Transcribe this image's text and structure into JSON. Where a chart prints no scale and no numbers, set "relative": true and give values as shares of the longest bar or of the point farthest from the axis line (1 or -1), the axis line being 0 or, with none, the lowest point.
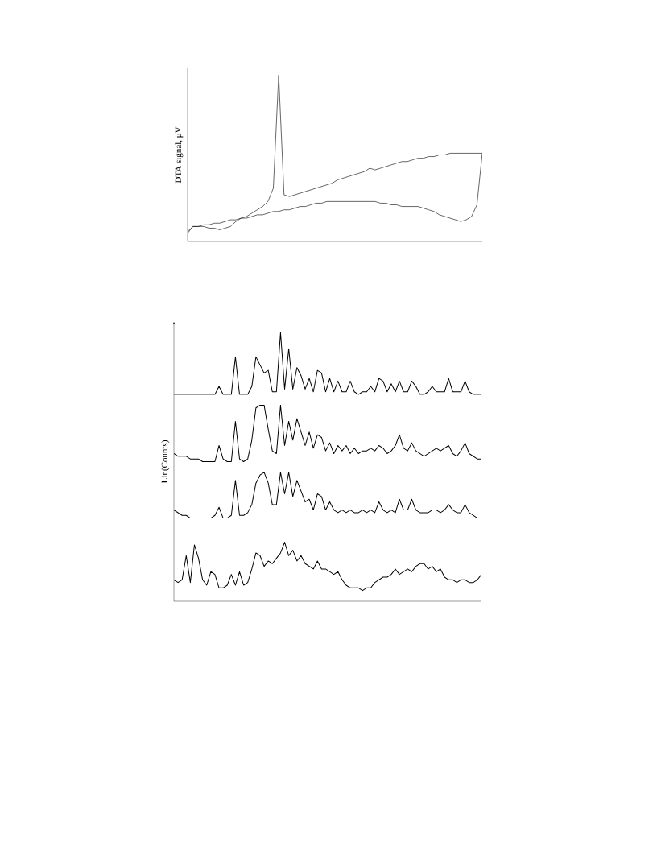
{
  "chart_data": [
    {
      "type": "line",
      "ylabel": "DTA signal, μV",
      "relative": true,
      "categories": [
        null,
        null,
        null,
        null,
        null,
        null,
        null,
        null,
        null,
        null,
        null,
        null,
        null,
        null,
        null,
        null,
        null,
        null,
        null,
        null,
        null,
        null,
        null,
        null,
        null,
        null,
        null,
        null,
        null,
        null,
        null,
        null,
        null,
        null,
        null,
        null,
        null,
        null,
        null,
        null,
        null,
        null,
        null,
        null,
        null,
        null,
        null,
        null,
        null,
        null,
        null,
        null,
        null,
        null,
        null,
        null
      ],
      "series": [
        {
          "color": "#000000",
          "values": [
            0.05,
            0.09,
            0.09,
            0.09,
            0.08,
            0.08,
            0.07,
            0.08,
            0.09,
            0.12,
            0.14,
            0.15,
            0.17,
            0.19,
            0.21,
            0.24,
            0.32,
            1,
            0.28,
            0.27,
            0.28,
            0.29,
            0.3,
            0.31,
            0.32,
            0.33,
            0.34,
            0.35,
            0.37,
            0.38,
            0.39,
            0.4,
            0.41,
            0.42,
            0.44,
            0.43,
            0.44,
            0.45,
            0.46,
            0.47,
            0.48,
            0.48,
            0.49,
            0.5,
            0.5,
            0.51,
            0.51,
            0.52,
            0.52,
            0.53,
            0.53,
            0.53,
            0.53,
            0.53,
            0.53,
            0.53
          ]
        },
        {
          "color": "#000000",
          "values": [
            0.06,
            0.09,
            0.09,
            0.1,
            0.1,
            0.11,
            0.11,
            0.12,
            0.13,
            0.13,
            0.14,
            0.14,
            0.15,
            0.16,
            0.16,
            0.17,
            0.18,
            0.18,
            0.19,
            0.19,
            0.2,
            0.21,
            0.21,
            0.22,
            0.23,
            0.23,
            0.24,
            0.24,
            0.24,
            0.24,
            0.24,
            0.24,
            0.24,
            0.24,
            0.24,
            0.24,
            0.23,
            0.23,
            0.22,
            0.22,
            0.21,
            0.21,
            0.21,
            0.21,
            0.2,
            0.19,
            0.18,
            0.16,
            0.15,
            0.14,
            0.13,
            0.12,
            0.13,
            0.15,
            0.22,
            0.53
          ]
        }
      ]
    },
    {
      "type": "line",
      "ylabel": "Lin(Counts)",
      "relative": true,
      "categories": [
        null,
        null,
        null,
        null,
        null,
        null,
        null,
        null,
        null,
        null,
        null,
        null,
        null,
        null,
        null,
        null,
        null,
        null,
        null,
        null,
        null,
        null,
        null,
        null,
        null,
        null,
        null,
        null,
        null,
        null,
        null,
        null,
        null,
        null,
        null,
        null,
        null,
        null,
        null,
        null,
        null,
        null,
        null,
        null,
        null,
        null,
        null,
        null,
        null,
        null,
        null,
        null,
        null,
        null,
        null,
        null,
        null,
        null,
        null,
        null,
        null,
        null,
        null,
        null,
        null,
        null,
        null,
        null,
        null,
        null,
        null,
        null,
        null,
        null,
        null,
        null
      ],
      "series": [
        {
          "color": "#000000",
          "values": [
            0.77,
            0.77,
            0.77,
            0.77,
            0.77,
            0.77,
            0.77,
            0.77,
            0.77,
            0.77,
            0.77,
            0.8,
            0.77,
            0.77,
            0.77,
            0.91,
            0.77,
            0.77,
            0.77,
            0.8,
            0.91,
            0.88,
            0.85,
            0.86,
            0.78,
            0.78,
            1,
            0.79,
            0.94,
            0.79,
            0.87,
            0.84,
            0.79,
            0.83,
            0.78,
            0.86,
            0.85,
            0.78,
            0.83,
            0.78,
            0.82,
            0.78,
            0.78,
            0.82,
            0.78,
            0.77,
            0.78,
            0.78,
            0.8,
            0.78,
            0.83,
            0.82,
            0.78,
            0.81,
            0.78,
            0.82,
            0.78,
            0.78,
            0.82,
            0.8,
            0.77,
            0.77,
            0.78,
            0.8,
            0.78,
            0.78,
            0.78,
            0.83,
            0.78,
            0.78,
            0.78,
            0.82,
            0.78,
            0.77,
            0.77,
            0.77
          ]
        },
        {
          "color": "#000000",
          "values": [
            0.55,
            0.54,
            0.54,
            0.54,
            0.53,
            0.53,
            0.53,
            0.52,
            0.52,
            0.52,
            0.52,
            0.58,
            0.53,
            0.52,
            0.52,
            0.67,
            0.53,
            0.52,
            0.53,
            0.6,
            0.72,
            0.73,
            0.73,
            0.64,
            0.56,
            0.55,
            0.73,
            0.58,
            0.67,
            0.6,
            0.68,
            0.63,
            0.58,
            0.63,
            0.57,
            0.62,
            0.61,
            0.56,
            0.59,
            0.55,
            0.58,
            0.56,
            0.58,
            0.55,
            0.57,
            0.55,
            0.56,
            0.56,
            0.57,
            0.56,
            0.58,
            0.57,
            0.55,
            0.56,
            0.58,
            0.62,
            0.57,
            0.56,
            0.59,
            0.56,
            0.55,
            0.54,
            0.55,
            0.56,
            0.57,
            0.56,
            0.57,
            0.58,
            0.55,
            0.54,
            0.56,
            0.59,
            0.55,
            0.54,
            0.53,
            0.53
          ]
        },
        {
          "color": "#000000",
          "values": [
            0.34,
            0.33,
            0.32,
            0.32,
            0.31,
            0.31,
            0.31,
            0.31,
            0.31,
            0.31,
            0.32,
            0.35,
            0.31,
            0.31,
            0.32,
            0.45,
            0.32,
            0.32,
            0.33,
            0.36,
            0.44,
            0.47,
            0.48,
            0.44,
            0.36,
            0.36,
            0.48,
            0.4,
            0.48,
            0.39,
            0.45,
            0.41,
            0.37,
            0.38,
            0.34,
            0.4,
            0.39,
            0.34,
            0.37,
            0.34,
            0.33,
            0.34,
            0.33,
            0.34,
            0.33,
            0.33,
            0.34,
            0.33,
            0.34,
            0.33,
            0.37,
            0.34,
            0.33,
            0.34,
            0.33,
            0.38,
            0.34,
            0.34,
            0.38,
            0.34,
            0.33,
            0.33,
            0.33,
            0.34,
            0.34,
            0.33,
            0.34,
            0.36,
            0.34,
            0.33,
            0.33,
            0.36,
            0.33,
            0.32,
            0.31,
            0.31
          ]
        },
        {
          "color": "#000000",
          "values": [
            0.08,
            0.07,
            0.08,
            0.17,
            0.07,
            0.21,
            0.16,
            0.08,
            0.06,
            0.11,
            0.1,
            0.05,
            0.05,
            0.06,
            0.1,
            0.06,
            0.11,
            0.06,
            0.07,
            0.12,
            0.18,
            0.17,
            0.13,
            0.15,
            0.14,
            0.16,
            0.18,
            0.22,
            0.17,
            0.19,
            0.15,
            0.17,
            0.14,
            0.13,
            0.12,
            0.15,
            0.12,
            0.12,
            0.11,
            0.1,
            0.11,
            0.08,
            0.06,
            0.05,
            0.05,
            0.05,
            0.04,
            0.05,
            0.05,
            0.07,
            0.08,
            0.09,
            0.09,
            0.1,
            0.12,
            0.1,
            0.11,
            0.12,
            0.11,
            0.13,
            0.14,
            0.14,
            0.12,
            0.13,
            0.11,
            0.12,
            0.09,
            0.08,
            0.08,
            0.07,
            0.08,
            0.08,
            0.07,
            0.07,
            0.08,
            0.1
          ]
        }
      ]
    }
  ]
}
